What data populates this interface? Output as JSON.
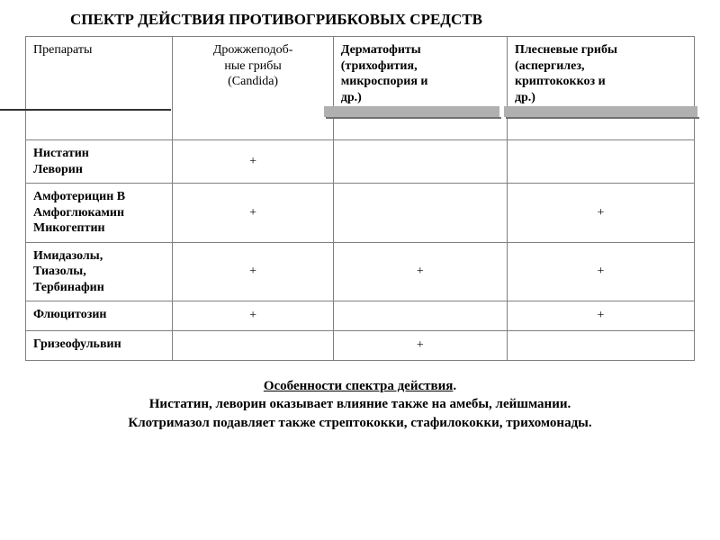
{
  "title": "СПЕКТР ДЕЙСТВИЯ ПРОТИВОГРИБКОВЫХ СРЕДСТВ",
  "colors": {
    "background": "#ffffff",
    "text": "#000000",
    "border": "#808080",
    "stripe": "#b0b0b0",
    "stripe_shadow": "#707070"
  },
  "fonts": {
    "family": "Times New Roman",
    "title_size_pt": 17,
    "body_size_pt": 14,
    "footer_size_pt": 15
  },
  "table": {
    "type": "table",
    "column_widths_pct": [
      22,
      24,
      26,
      28
    ],
    "columns": [
      {
        "line1": "Препараты",
        "line2": "",
        "line3": ""
      },
      {
        "line1": "Дрожжеподоб-",
        "line2": "ные грибы",
        "line3": "(Candida)"
      },
      {
        "line1": "Дерматофиты",
        "line2": "(трихофития,",
        "line3": "микроспория и",
        "line4": "др.)"
      },
      {
        "line1": " Плесневые грибы",
        "line2": "(аспергилез,",
        "line3": "криптококкоз и",
        "line4": "др.)"
      }
    ],
    "rows": [
      {
        "drug_l1": "Нистатин",
        "drug_l2": "Леворин",
        "drug_l3": "",
        "c1": "+",
        "c2": "",
        "c3": ""
      },
      {
        "drug_l1": "Амфотерицин В",
        "drug_l2": "Амфоглюкамин",
        "drug_l3": "Микогептин",
        "c1": "+",
        "c2": "",
        "c3": "+"
      },
      {
        "drug_l1": "Имидазолы,",
        "drug_l2": "Тиазолы,",
        "drug_l3": "Тербинафин",
        "c1": "+",
        "c2": "+",
        "c3": "+"
      },
      {
        "drug_l1": "Флюцитозин",
        "drug_l2": "",
        "drug_l3": "",
        "c1": "+",
        "c2": "",
        "c3": "+"
      },
      {
        "drug_l1": "Гризеофульвин",
        "drug_l2": "",
        "drug_l3": "",
        "c1": "",
        "c2": "+",
        "c3": ""
      }
    ]
  },
  "footer": {
    "underlined": "Особенности спектра действия",
    "punct": ".",
    "line2": "Нистатин, леворин оказывает влияние также на амебы,  лейшмании.",
    "line3": "Клотримазол подавляет также стрептококки, стафилококки, трихомонады."
  }
}
